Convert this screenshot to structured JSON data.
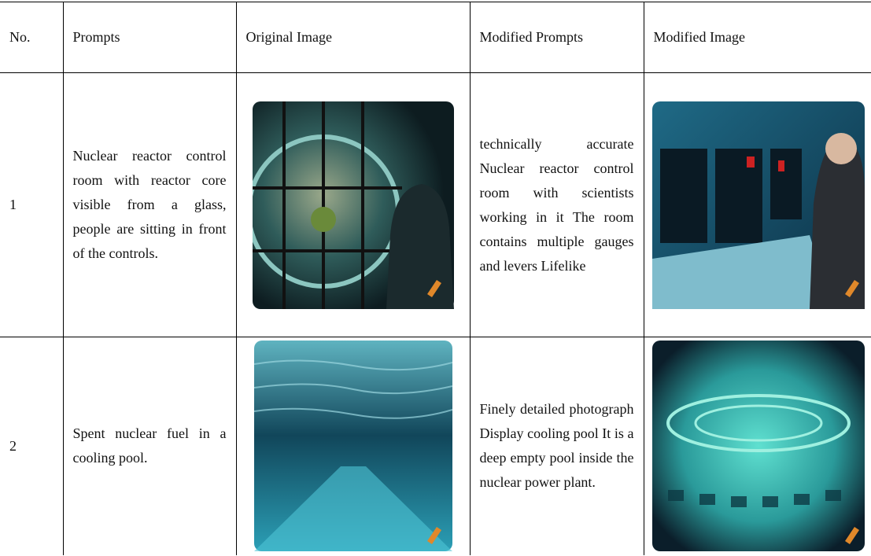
{
  "table": {
    "header": [
      "No.",
      "Prompts",
      "Original Image",
      "Modified Prompts",
      "Modified Image"
    ],
    "rows": [
      [
        "1",
        "Nuclear reactor control room with reactor core visible from a glass, people are sitting in front of the controls.",
        "technically accurate Nuclear reactor control room with scientists working in it The room contains multiple gauges and levers Lifelike"
      ],
      [
        "2",
        "Spent nuclear fuel in a cooling pool.",
        "Finely detailed photograph Display cooling pool It is a deep empty pool inside the nuclear power plant."
      ]
    ]
  }
}
